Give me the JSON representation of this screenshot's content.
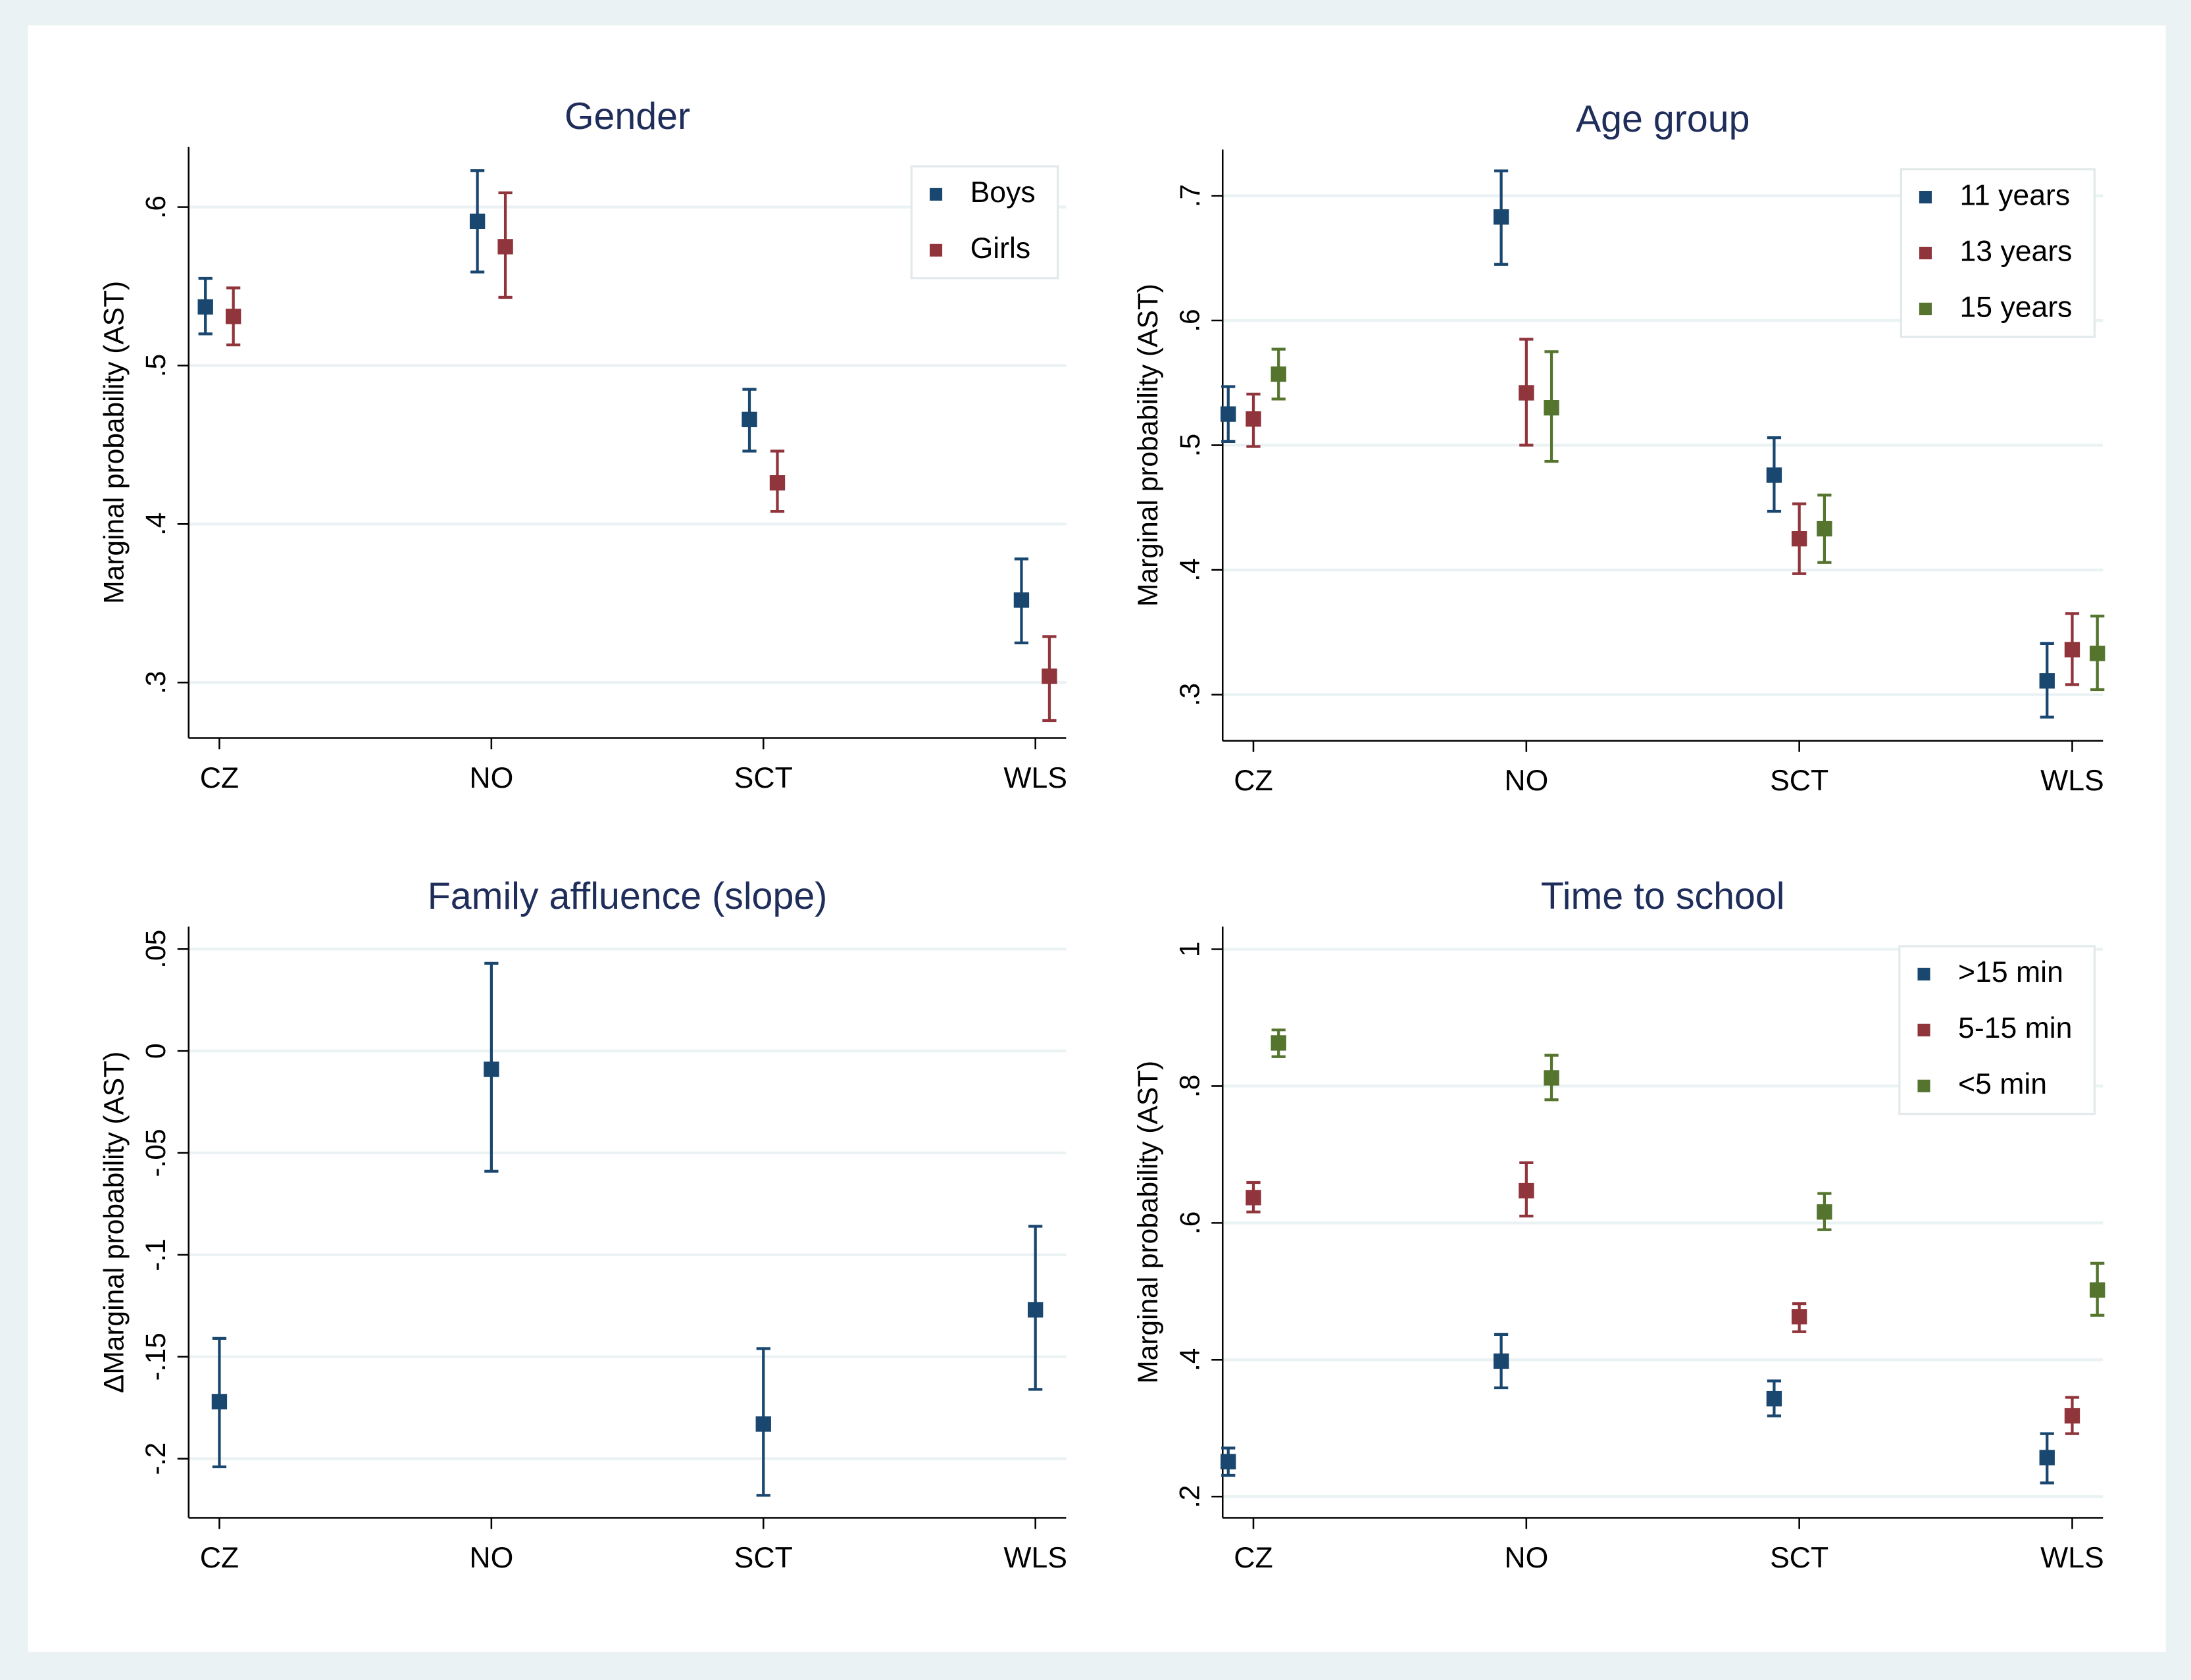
{
  "chart_data": [
    {
      "type": "errorbar",
      "title": "Gender",
      "y_label": "Marginal probability (AST)",
      "categories": [
        "CZ",
        "NO",
        "SCT",
        "WLS"
      ],
      "series": [
        {
          "name": "Boys",
          "color": "#1a476f",
          "values": [
            0.537,
            0.591,
            0.466,
            0.352
          ],
          "lower": [
            0.52,
            0.559,
            0.446,
            0.325
          ],
          "upper": [
            0.555,
            0.623,
            0.485,
            0.378
          ]
        },
        {
          "name": "Girls",
          "color": "#90353b",
          "values": [
            0.531,
            0.575,
            0.426,
            0.304
          ],
          "lower": [
            0.513,
            0.543,
            0.408,
            0.276
          ],
          "upper": [
            0.549,
            0.609,
            0.446,
            0.329
          ]
        }
      ],
      "ylim": [
        0.265,
        0.638
      ],
      "yticks": [
        {
          "value": 0.3,
          "label": ".3"
        },
        {
          "value": 0.4,
          "label": ".4"
        },
        {
          "value": 0.5,
          "label": ".5"
        },
        {
          "value": 0.6,
          "label": ".6"
        }
      ],
      "grid": true,
      "legend": "top-right"
    },
    {
      "type": "errorbar",
      "title": "Age group",
      "y_label": "Marginal probability (AST)",
      "categories": [
        "CZ",
        "NO",
        "SCT",
        "WLS"
      ],
      "series": [
        {
          "name": "11 years",
          "color": "#1a476f",
          "values": [
            0.525,
            0.683,
            0.476,
            0.311
          ],
          "lower": [
            0.503,
            0.645,
            0.447,
            0.282
          ],
          "upper": [
            0.547,
            0.72,
            0.506,
            0.341
          ]
        },
        {
          "name": "13 years",
          "color": "#90353b",
          "values": [
            0.521,
            0.542,
            0.425,
            0.336
          ],
          "lower": [
            0.499,
            0.5,
            0.397,
            0.308
          ],
          "upper": [
            0.541,
            0.585,
            0.453,
            0.365
          ]
        },
        {
          "name": "15 years",
          "color": "#55752f",
          "values": [
            0.557,
            0.53,
            0.433,
            0.333
          ],
          "lower": [
            0.537,
            0.487,
            0.406,
            0.304
          ],
          "upper": [
            0.577,
            0.575,
            0.46,
            0.363
          ]
        }
      ],
      "ylim": [
        0.263,
        0.737
      ],
      "yticks": [
        {
          "value": 0.3,
          "label": ".3"
        },
        {
          "value": 0.4,
          "label": ".4"
        },
        {
          "value": 0.5,
          "label": ".5"
        },
        {
          "value": 0.6,
          "label": ".6"
        },
        {
          "value": 0.7,
          "label": ".7"
        }
      ],
      "grid": true,
      "legend": "top-right"
    },
    {
      "type": "errorbar",
      "title": "Family affluence (slope)",
      "y_label": "ΔMarginal probability (AST)",
      "categories": [
        "CZ",
        "NO",
        "SCT",
        "WLS"
      ],
      "series": [
        {
          "color": "#1a476f",
          "values": [
            -0.172,
            -0.009,
            -0.183,
            -0.127
          ],
          "lower": [
            -0.204,
            -0.059,
            -0.218,
            -0.166
          ],
          "upper": [
            -0.141,
            0.043,
            -0.146,
            -0.086
          ]
        }
      ],
      "ylim": [
        -0.229,
        0.061
      ],
      "yticks": [
        {
          "value": -0.2,
          "label": "-.2"
        },
        {
          "value": -0.15,
          "label": "-.15"
        },
        {
          "value": -0.1,
          "label": "-.1"
        },
        {
          "value": -0.05,
          "label": "-.05"
        },
        0,
        {
          "value": 0.05,
          "label": ".05"
        }
      ],
      "grid": true
    },
    {
      "type": "errorbar",
      "title": "Time to school",
      "y_label": "Marginal probability (AST)",
      "categories": [
        "CZ",
        "NO",
        "SCT",
        "WLS"
      ],
      "series": [
        {
          "name": ">15 min",
          "color": "#1a476f",
          "values": [
            0.251,
            0.398,
            0.343,
            0.257
          ],
          "lower": [
            0.231,
            0.359,
            0.318,
            0.22
          ],
          "upper": [
            0.271,
            0.437,
            0.369,
            0.292
          ]
        },
        {
          "name": "5-15 min",
          "color": "#90353b",
          "values": [
            0.637,
            0.647,
            0.463,
            0.318
          ],
          "lower": [
            0.616,
            0.61,
            0.441,
            0.292
          ],
          "upper": [
            0.659,
            0.688,
            0.482,
            0.345
          ]
        },
        {
          "name": "<5 min",
          "color": "#55752f",
          "values": [
            0.863,
            0.812,
            0.616,
            0.502
          ],
          "lower": [
            0.843,
            0.78,
            0.59,
            0.465
          ],
          "upper": [
            0.882,
            0.845,
            0.643,
            0.541
          ]
        }
      ],
      "ylim": [
        0.169,
        1.033
      ],
      "yticks": [
        {
          "value": 0.2,
          "label": ".2"
        },
        {
          "value": 0.4,
          "label": ".4"
        },
        {
          "value": 0.6,
          "label": ".6"
        },
        {
          "value": 0.8,
          "label": ".8"
        },
        1
      ],
      "grid": true,
      "legend": "top-right"
    }
  ]
}
